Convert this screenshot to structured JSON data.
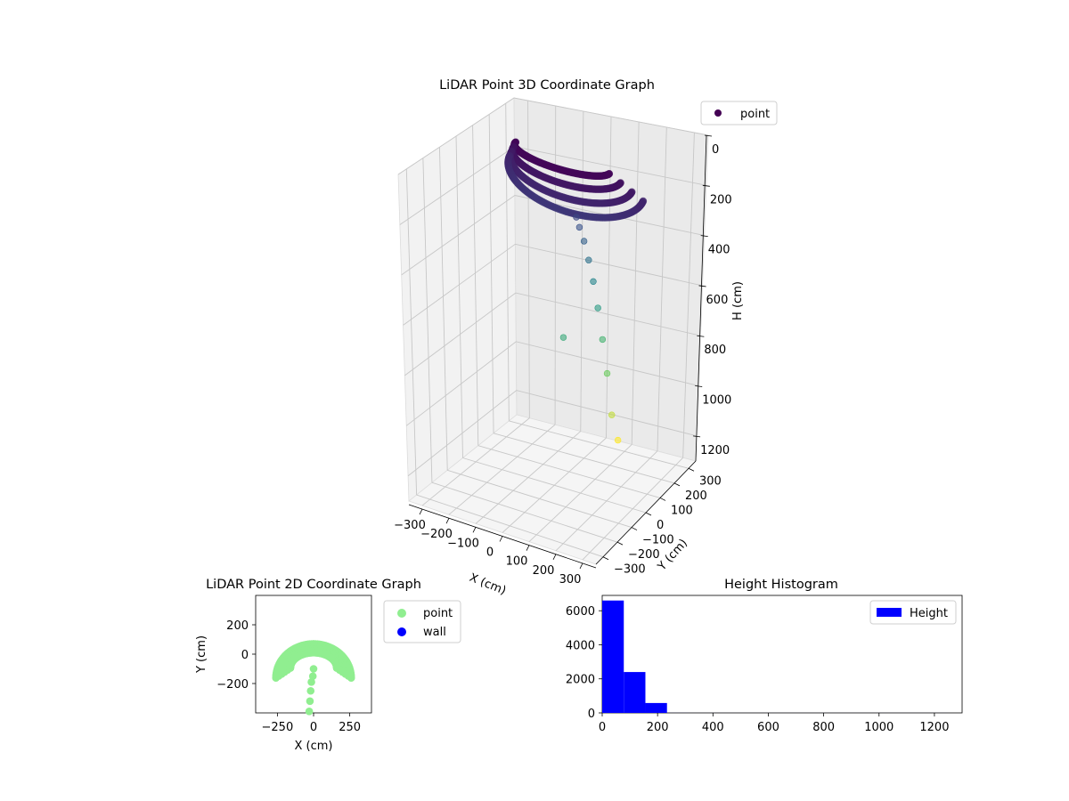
{
  "chart_data": [
    {
      "type": "scatter",
      "projection": "3d",
      "title": "LiDAR Point 3D Coordinate Graph",
      "xlabel": "X (cm)",
      "ylabel": "Y (cm)",
      "zlabel": "H (cm)",
      "xticks": [
        "−300",
        "−200",
        "−100",
        "0",
        "100",
        "200",
        "300"
      ],
      "yticks": [
        "−300",
        "−200",
        "−100",
        "0",
        "100",
        "200",
        "300"
      ],
      "zticks": [
        "0",
        "200",
        "400",
        "600",
        "800",
        "1000",
        "1200"
      ],
      "xlim": [
        -350,
        350
      ],
      "ylim": [
        -350,
        350
      ],
      "zlim": [
        0,
        1300
      ],
      "z_inverted": true,
      "legend": {
        "placement": "top-right",
        "entries": [
          "point"
        ]
      },
      "series": [
        {
          "name": "point",
          "colormap": "viridis",
          "cluster": {
            "note_type": "dense arc of points",
            "x_range": [
              -250,
              250
            ],
            "y_range": [
              -190,
              90
            ],
            "h_range": [
              0,
              210
            ]
          },
          "points": [
            {
              "x": 0,
              "y": -130,
              "h": 280
            },
            {
              "x": 0,
              "y": -150,
              "h": 330
            },
            {
              "x": 0,
              "y": -180,
              "h": 400
            },
            {
              "x": 0,
              "y": -210,
              "h": 490
            },
            {
              "x": 0,
              "y": -240,
              "h": 590
            },
            {
              "x": 0,
              "y": -270,
              "h": 710
            },
            {
              "x": 0,
              "y": -300,
              "h": 850
            },
            {
              "x": -60,
              "y": -150,
              "h": 790
            },
            {
              "x": 0,
              "y": -330,
              "h": 1000
            },
            {
              "x": 0,
              "y": -360,
              "h": 1180
            },
            {
              "x": 0,
              "y": -400,
              "h": 1300
            }
          ]
        }
      ]
    },
    {
      "type": "scatter",
      "title": "LiDAR Point 2D Coordinate Graph",
      "xlabel": "X (cm)",
      "ylabel": "Y (cm)",
      "xticks": [
        "−250",
        "0",
        "250"
      ],
      "yticks": [
        "200",
        "0",
        "−200"
      ],
      "xlim": [
        -400,
        400
      ],
      "ylim": [
        -400,
        400
      ],
      "legend": {
        "placement": "outside-right",
        "entries": [
          "point",
          "wall"
        ]
      },
      "series": [
        {
          "name": "point",
          "color": "#90ee90",
          "shape": "arc from x -260 to 260, y top 70, y bottom -180",
          "stem_points": [
            {
              "x": 0,
              "y": -100
            },
            {
              "x": -5,
              "y": -150
            },
            {
              "x": -15,
              "y": -190
            },
            {
              "x": -20,
              "y": -250
            },
            {
              "x": -25,
              "y": -320
            },
            {
              "x": -30,
              "y": -390
            }
          ]
        },
        {
          "name": "wall",
          "color": "#0000ff",
          "points": []
        }
      ]
    },
    {
      "type": "bar",
      "subtype": "histogram",
      "title": "Height Histogram",
      "xlabel": "",
      "ylabel": "",
      "xticks": [
        "0",
        "200",
        "400",
        "600",
        "800",
        "1000",
        "1200"
      ],
      "yticks": [
        "0",
        "2000",
        "4000",
        "6000"
      ],
      "xlim": [
        0,
        1300
      ],
      "ylim": [
        0,
        6900
      ],
      "legend": {
        "placement": "top-right",
        "entries": [
          "Height"
        ]
      },
      "series": [
        {
          "name": "Height",
          "color": "#0000ff",
          "bins": [
            {
              "from": 0,
              "to": 78,
              "count": 6600
            },
            {
              "from": 78,
              "to": 156,
              "count": 2400
            },
            {
              "from": 156,
              "to": 234,
              "count": 580
            },
            {
              "from": 234,
              "to": 312,
              "count": 2
            },
            {
              "from": 312,
              "to": 390,
              "count": 1
            },
            {
              "from": 390,
              "to": 468,
              "count": 1
            },
            {
              "from": 468,
              "to": 546,
              "count": 1
            },
            {
              "from": 546,
              "to": 624,
              "count": 1
            },
            {
              "from": 624,
              "to": 702,
              "count": 1
            },
            {
              "from": 702,
              "to": 780,
              "count": 1
            },
            {
              "from": 780,
              "to": 858,
              "count": 1
            },
            {
              "from": 858,
              "to": 936,
              "count": 1
            },
            {
              "from": 936,
              "to": 1014,
              "count": 1
            },
            {
              "from": 1014,
              "to": 1092,
              "count": 1
            },
            {
              "from": 1092,
              "to": 1170,
              "count": 1
            },
            {
              "from": 1170,
              "to": 1248,
              "count": 1
            }
          ]
        }
      ]
    }
  ]
}
